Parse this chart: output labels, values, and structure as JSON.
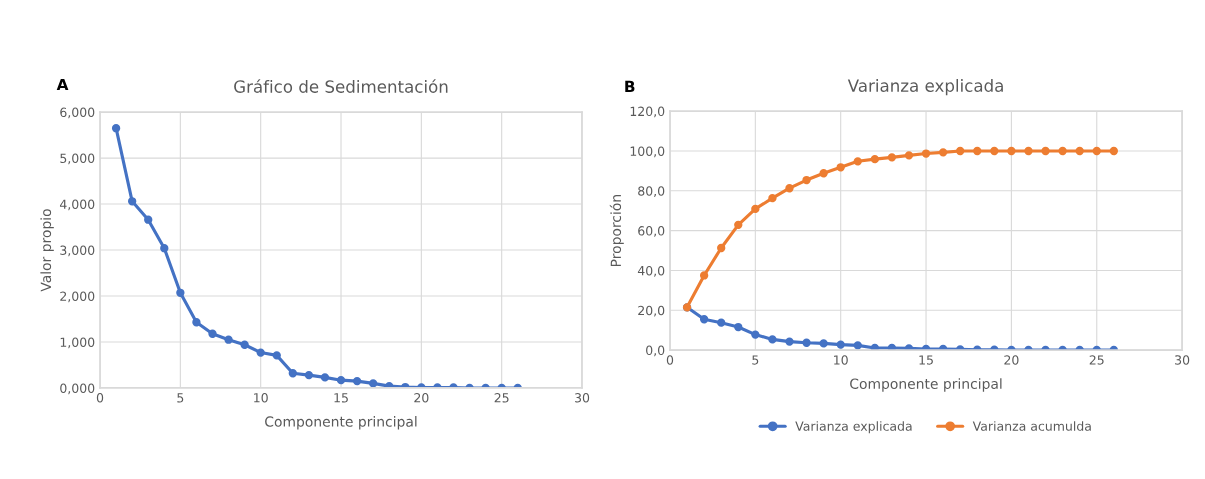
{
  "chart_data": [
    {
      "type": "line",
      "title": "Gráfico de Sedimentación",
      "xlabel": "Componente principal",
      "ylabel": "Valor propio",
      "annotations": [
        "A"
      ],
      "x": [
        1,
        2,
        3,
        4,
        5,
        6,
        7,
        8,
        9,
        10,
        11,
        12,
        13,
        14,
        15,
        16,
        17,
        18,
        19,
        20,
        21,
        22,
        23,
        24,
        25,
        26
      ],
      "series": [
        {
          "color": "#4472c4",
          "values": [
            5.65,
            4.06,
            3.66,
            3.04,
            2.07,
            1.43,
            1.18,
            1.05,
            0.94,
            0.77,
            0.71,
            0.32,
            0.28,
            0.23,
            0.17,
            0.15,
            0.1,
            0.04,
            0.02,
            0.01,
            0.01,
            0.01,
            0.0,
            0.0,
            0.0,
            0.0
          ]
        }
      ],
      "xlim": [
        0,
        30
      ],
      "xticks": [
        0,
        5,
        10,
        15,
        20,
        25,
        30
      ],
      "ylim": [
        0,
        6
      ],
      "yticks": [
        {
          "value": 0,
          "label": "0,000"
        },
        {
          "value": 1,
          "label": "1,000"
        },
        {
          "value": 2,
          "label": "2,000"
        },
        {
          "value": 3,
          "label": "3,000"
        },
        {
          "value": 4,
          "label": "4,000"
        },
        {
          "value": 5,
          "label": "5,000"
        },
        {
          "value": 6,
          "label": "6,000"
        }
      ],
      "grid": true,
      "marker": "circle",
      "legend": false
    },
    {
      "type": "line",
      "title": "Varianza explicada",
      "xlabel": "Componente principal",
      "ylabel": "Proporción",
      "annotations": [
        "B"
      ],
      "x": [
        1,
        2,
        3,
        4,
        5,
        6,
        7,
        8,
        9,
        10,
        11,
        12,
        13,
        14,
        15,
        16,
        17,
        18,
        19,
        20,
        21,
        22,
        23,
        24,
        25,
        26
      ],
      "series": [
        {
          "name": "Varianza explicada",
          "color": "#4472c4",
          "values": [
            21.5,
            15.5,
            13.8,
            11.6,
            7.8,
            5.4,
            4.3,
            3.7,
            3.4,
            2.8,
            2.4,
            1.1,
            1.1,
            0.9,
            0.6,
            0.6,
            0.4,
            0.2,
            0.2,
            0.1,
            0.1,
            0.1,
            0.1,
            0.1,
            0.1,
            0.1
          ]
        },
        {
          "name": "Varianza acumulda",
          "color": "#ed7d31",
          "values": [
            21.5,
            37.5,
            51.3,
            62.9,
            70.9,
            76.3,
            81.3,
            85.4,
            88.8,
            91.8,
            94.8,
            95.9,
            96.8,
            97.8,
            98.7,
            99.3,
            100,
            100,
            100,
            100,
            100,
            100,
            100,
            100,
            100,
            100
          ]
        }
      ],
      "xlim": [
        0,
        30
      ],
      "xticks": [
        0,
        5,
        10,
        15,
        20,
        25,
        30
      ],
      "ylim": [
        0,
        120
      ],
      "yticks": [
        {
          "value": 0,
          "label": "0,0"
        },
        {
          "value": 20,
          "label": "20,0"
        },
        {
          "value": 40,
          "label": "40,0"
        },
        {
          "value": 60,
          "label": "60,0"
        },
        {
          "value": 80,
          "label": "80,0"
        },
        {
          "value": 100,
          "label": "100,0"
        },
        {
          "value": 120,
          "label": "120,0"
        }
      ],
      "grid": true,
      "marker": "circle",
      "legend": "bottom"
    }
  ]
}
